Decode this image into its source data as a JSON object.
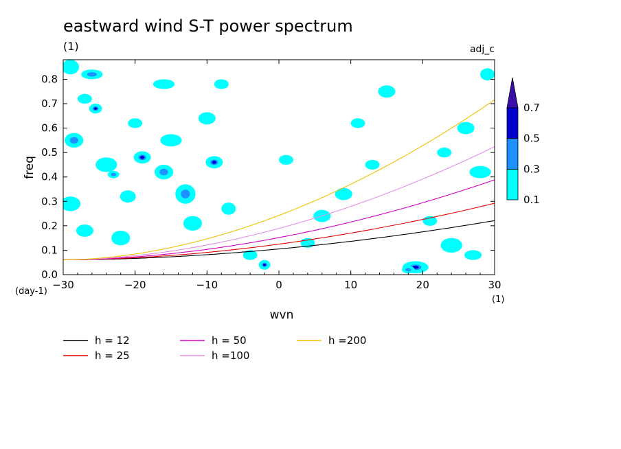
{
  "chart_data": {
    "type": "contour",
    "title": "eastward wind S-T power spectrum",
    "subtitle": "(1)",
    "tag": "adj_c",
    "xlabel": "wvn",
    "x_unit": "(1)",
    "ylabel": "freq",
    "y_unit": "(day-1)",
    "xlim": [
      -30,
      30
    ],
    "ylim": [
      0,
      0.88
    ],
    "xticks": [
      "-30",
      "-20",
      "-10",
      "0",
      "10",
      "20",
      "30"
    ],
    "yticks": [
      "0.0",
      "0.1",
      "0.2",
      "0.3",
      "0.4",
      "0.5",
      "0.6",
      "0.7",
      "0.8"
    ],
    "colorbar": {
      "levels": [
        "0.1",
        "0.3",
        "0.5",
        "0.7"
      ],
      "colors": [
        "#00ffff",
        "#1e90ff",
        "#0000cd",
        "#3a0ea8"
      ]
    },
    "dispersion_curves": [
      {
        "name": "h = 12",
        "h": 12,
        "color": "#000000"
      },
      {
        "name": "h = 25",
        "h": 25,
        "color": "#e00000"
      },
      {
        "name": "h = 50",
        "h": 50,
        "color": "#d000c0"
      },
      {
        "name": "h =100",
        "h": 100,
        "color": "#e090e0"
      },
      {
        "name": "h =200",
        "h": 200,
        "color": "#f0c000"
      }
    ],
    "blobs": [
      {
        "x": -29,
        "y": 0.85,
        "rx": 1.2,
        "ry": 0.03,
        "level": 1
      },
      {
        "x": -27,
        "y": 0.72,
        "rx": 1.0,
        "ry": 0.02,
        "level": 1
      },
      {
        "x": -28.5,
        "y": 0.55,
        "rx": 1.3,
        "ry": 0.03,
        "level": 2
      },
      {
        "x": -26,
        "y": 0.82,
        "rx": 1.5,
        "ry": 0.02,
        "level": 2
      },
      {
        "x": -25.5,
        "y": 0.68,
        "rx": 0.9,
        "ry": 0.02,
        "level": 3
      },
      {
        "x": -24,
        "y": 0.45,
        "rx": 1.5,
        "ry": 0.03,
        "level": 1
      },
      {
        "x": -23,
        "y": 0.41,
        "rx": 0.8,
        "ry": 0.015,
        "level": 2
      },
      {
        "x": -29,
        "y": 0.29,
        "rx": 1.4,
        "ry": 0.03,
        "level": 1
      },
      {
        "x": -27,
        "y": 0.18,
        "rx": 1.2,
        "ry": 0.025,
        "level": 1
      },
      {
        "x": -22,
        "y": 0.15,
        "rx": 1.3,
        "ry": 0.03,
        "level": 1
      },
      {
        "x": -19,
        "y": 0.48,
        "rx": 1.2,
        "ry": 0.025,
        "level": 3
      },
      {
        "x": -20,
        "y": 0.62,
        "rx": 1.0,
        "ry": 0.02,
        "level": 1
      },
      {
        "x": -21,
        "y": 0.32,
        "rx": 1.1,
        "ry": 0.025,
        "level": 1
      },
      {
        "x": -16,
        "y": 0.42,
        "rx": 1.3,
        "ry": 0.03,
        "level": 2
      },
      {
        "x": -15,
        "y": 0.55,
        "rx": 1.5,
        "ry": 0.025,
        "level": 1
      },
      {
        "x": -13,
        "y": 0.33,
        "rx": 1.4,
        "ry": 0.04,
        "level": 2
      },
      {
        "x": -12,
        "y": 0.21,
        "rx": 1.3,
        "ry": 0.03,
        "level": 1
      },
      {
        "x": -9,
        "y": 0.46,
        "rx": 1.2,
        "ry": 0.025,
        "level": 3
      },
      {
        "x": -10,
        "y": 0.64,
        "rx": 1.2,
        "ry": 0.025,
        "level": 1
      },
      {
        "x": -7,
        "y": 0.27,
        "rx": 1.0,
        "ry": 0.025,
        "level": 1
      },
      {
        "x": -16,
        "y": 0.78,
        "rx": 1.5,
        "ry": 0.02,
        "level": 1
      },
      {
        "x": -8,
        "y": 0.78,
        "rx": 1.0,
        "ry": 0.02,
        "level": 1
      },
      {
        "x": -2,
        "y": 0.04,
        "rx": 0.8,
        "ry": 0.02,
        "level": 3
      },
      {
        "x": -4,
        "y": 0.08,
        "rx": 1.0,
        "ry": 0.02,
        "level": 1
      },
      {
        "x": 4,
        "y": 0.13,
        "rx": 1.0,
        "ry": 0.02,
        "level": 1
      },
      {
        "x": 6,
        "y": 0.24,
        "rx": 1.2,
        "ry": 0.025,
        "level": 1
      },
      {
        "x": 11,
        "y": 0.62,
        "rx": 1.0,
        "ry": 0.02,
        "level": 1
      },
      {
        "x": 15,
        "y": 0.75,
        "rx": 1.2,
        "ry": 0.025,
        "level": 1
      },
      {
        "x": 13,
        "y": 0.45,
        "rx": 1.0,
        "ry": 0.02,
        "level": 1
      },
      {
        "x": 19,
        "y": 0.03,
        "rx": 1.8,
        "ry": 0.025,
        "level": 3
      },
      {
        "x": 18,
        "y": 0.02,
        "rx": 0.9,
        "ry": 0.015,
        "level": 2
      },
      {
        "x": 24,
        "y": 0.12,
        "rx": 1.5,
        "ry": 0.03,
        "level": 1
      },
      {
        "x": 27,
        "y": 0.08,
        "rx": 1.2,
        "ry": 0.02,
        "level": 1
      },
      {
        "x": 21,
        "y": 0.22,
        "rx": 1.0,
        "ry": 0.02,
        "level": 1
      },
      {
        "x": 28,
        "y": 0.42,
        "rx": 1.5,
        "ry": 0.025,
        "level": 1
      },
      {
        "x": 26,
        "y": 0.6,
        "rx": 1.2,
        "ry": 0.025,
        "level": 1
      },
      {
        "x": 23,
        "y": 0.5,
        "rx": 1.0,
        "ry": 0.02,
        "level": 1
      },
      {
        "x": 29,
        "y": 0.82,
        "rx": 1.0,
        "ry": 0.025,
        "level": 1
      },
      {
        "x": 9,
        "y": 0.33,
        "rx": 1.2,
        "ry": 0.025,
        "level": 1
      },
      {
        "x": 1,
        "y": 0.47,
        "rx": 1.0,
        "ry": 0.02,
        "level": 1
      }
    ]
  }
}
